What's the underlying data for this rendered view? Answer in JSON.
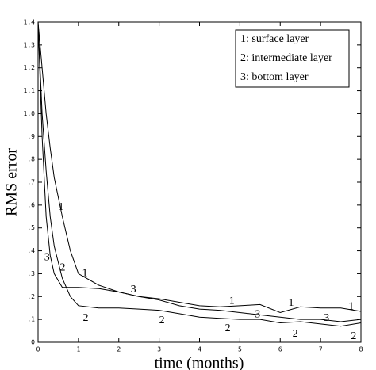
{
  "chart_data": {
    "type": "line",
    "xlabel": "time (months)",
    "ylabel": "RMS error",
    "x": [
      0,
      0.1,
      0.2,
      0.3,
      0.4,
      0.6,
      0.8,
      1,
      1.5,
      2,
      2.5,
      3,
      3.5,
      4,
      4.5,
      5,
      5.5,
      6,
      6.5,
      7,
      7.5,
      8
    ],
    "series": [
      {
        "name": "1: surface layer",
        "color": "#000000",
        "values": [
          1.4,
          1.2,
          1.0,
          0.85,
          0.72,
          0.55,
          0.4,
          0.3,
          0.25,
          0.22,
          0.2,
          0.19,
          0.175,
          0.16,
          0.155,
          0.16,
          0.165,
          0.13,
          0.155,
          0.15,
          0.15,
          0.135
        ]
      },
      {
        "name": "2: intermediate layer",
        "color": "#000000",
        "values": [
          1.4,
          1.0,
          0.75,
          0.55,
          0.42,
          0.28,
          0.2,
          0.16,
          0.15,
          0.15,
          0.145,
          0.14,
          0.125,
          0.11,
          0.105,
          0.1,
          0.1,
          0.085,
          0.09,
          0.08,
          0.07,
          0.085
        ]
      },
      {
        "name": "3: bottom layer",
        "color": "#000000",
        "values": [
          1.4,
          0.9,
          0.55,
          0.38,
          0.3,
          0.24,
          0.24,
          0.24,
          0.235,
          0.22,
          0.2,
          0.185,
          0.16,
          0.145,
          0.14,
          0.13,
          0.12,
          0.11,
          0.1,
          0.1,
          0.09,
          0.1
        ]
      }
    ],
    "annotations": [
      {
        "text": "1",
        "x": 0.57,
        "y": 0.59
      },
      {
        "text": "1",
        "x": 1.16,
        "y": 0.3
      },
      {
        "text": "1",
        "x": 4.8,
        "y": 0.18
      },
      {
        "text": "1",
        "x": 6.27,
        "y": 0.17
      },
      {
        "text": "1",
        "x": 7.76,
        "y": 0.155
      },
      {
        "text": "2",
        "x": 0.61,
        "y": 0.325
      },
      {
        "text": "2",
        "x": 1.18,
        "y": 0.105
      },
      {
        "text": "2",
        "x": 3.07,
        "y": 0.095
      },
      {
        "text": "2",
        "x": 4.7,
        "y": 0.06
      },
      {
        "text": "2",
        "x": 6.37,
        "y": 0.035
      },
      {
        "text": "2",
        "x": 7.82,
        "y": 0.025
      },
      {
        "text": "3",
        "x": 0.22,
        "y": 0.37
      },
      {
        "text": "3",
        "x": 2.36,
        "y": 0.23
      },
      {
        "text": "3",
        "x": 5.44,
        "y": 0.12
      },
      {
        "text": "3",
        "x": 7.15,
        "y": 0.105
      }
    ],
    "xlim": [
      0,
      8
    ],
    "xticks": [
      0,
      1,
      2,
      3,
      4,
      5,
      6,
      7,
      8
    ],
    "ylim": [
      0,
      1.4
    ],
    "yticks": [
      0,
      {
        "value": 0.1,
        "label": ".1"
      },
      {
        "value": 0.2,
        "label": ".2"
      },
      {
        "value": 0.3,
        "label": ".3"
      },
      {
        "value": 0.4,
        "label": ".4"
      },
      {
        "value": 0.5,
        "label": ".5"
      },
      {
        "value": 0.6,
        "label": ".6"
      },
      {
        "value": 0.7,
        "label": ".7"
      },
      {
        "value": 0.8,
        "label": ".8"
      },
      {
        "value": 0.9,
        "label": ".9"
      },
      {
        "value": 1.0,
        "label": "1.0"
      },
      1.1,
      1.2,
      1.3,
      1.4
    ],
    "legend": "upper right",
    "grid": false
  }
}
